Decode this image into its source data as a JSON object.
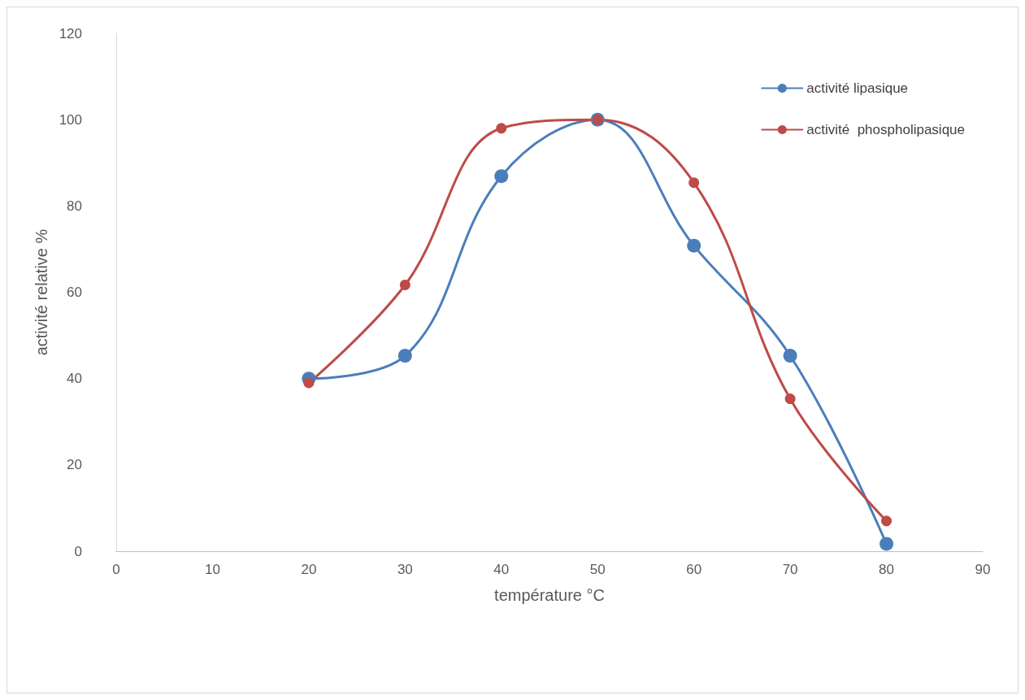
{
  "chart_data": {
    "type": "line",
    "xlabel": "température °C",
    "ylabel": "activité relative %",
    "x": [
      20,
      30,
      40,
      50,
      60,
      70,
      80
    ],
    "series": [
      {
        "name": "activité lipasique",
        "color": "#4a7ebb",
        "values": [
          40,
          45.3,
          86.9,
          100,
          70.8,
          45.3,
          1.7
        ]
      },
      {
        "name": "activité  phospholipasique",
        "color": "#be4b48",
        "values": [
          39,
          61.7,
          98,
          100,
          85.4,
          35.3,
          7
        ]
      }
    ],
    "xlim": [
      0,
      90
    ],
    "xticks": [
      0,
      10,
      20,
      30,
      40,
      50,
      60,
      70,
      80,
      90
    ],
    "ylim": [
      0,
      120
    ],
    "yticks": [
      0,
      20,
      40,
      60,
      80,
      100,
      120
    ],
    "grid": false,
    "legend": "top right",
    "marker": "circle",
    "line_style": "solid"
  }
}
